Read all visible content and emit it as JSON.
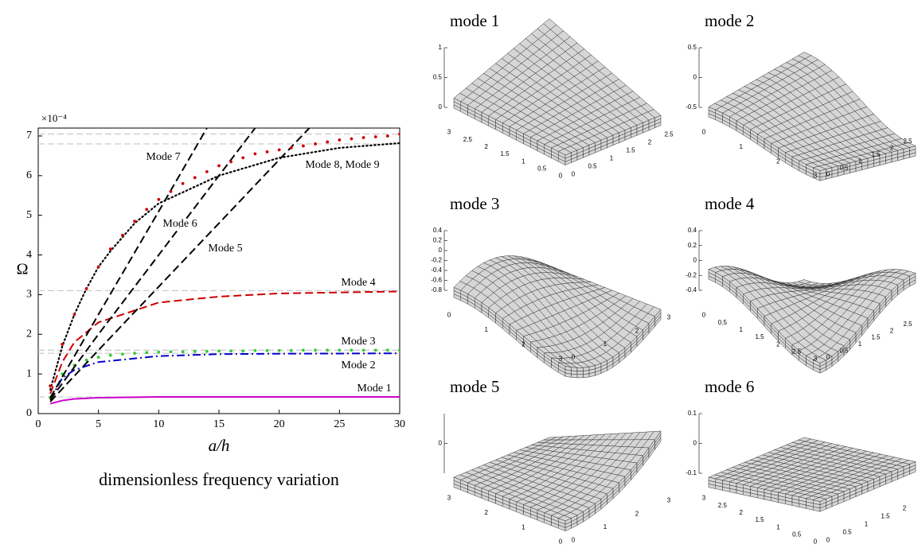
{
  "chart_data": {
    "type": "line",
    "caption": "dimensionless frequency variation",
    "xlabel": "a/h",
    "ylabel": "Ω",
    "scale_label": "×10⁻⁴",
    "xlim": [
      0,
      30
    ],
    "xticks": [
      0,
      5,
      10,
      15,
      20,
      25,
      30
    ],
    "ylim": [
      0,
      7.2
    ],
    "yticks": [
      0,
      1,
      2,
      3,
      4,
      5,
      6,
      7
    ],
    "ref_lines": [
      0.42,
      1.52,
      1.6,
      3.1,
      6.8,
      7.05
    ],
    "ref_color": "#c8c8c8",
    "series": [
      {
        "name": "Mode 1",
        "color": "#cc00cc",
        "style": "solid",
        "x": [
          1,
          2,
          3,
          5,
          10,
          30
        ],
        "values": [
          0.25,
          0.33,
          0.37,
          0.4,
          0.42,
          0.42
        ]
      },
      {
        "name": "Mode 2",
        "color": "#0000cc",
        "style": "dashdot",
        "x": [
          1,
          2,
          3,
          5,
          10,
          15,
          20,
          30
        ],
        "values": [
          0.35,
          0.9,
          1.1,
          1.3,
          1.45,
          1.5,
          1.51,
          1.52
        ]
      },
      {
        "name": "Mode 3",
        "color": "#33cc33",
        "style": "markers",
        "x": [
          1,
          2,
          3,
          4,
          5,
          6,
          7,
          8,
          9,
          10,
          11,
          12,
          13,
          14,
          15,
          16,
          17,
          18,
          19,
          20,
          21,
          22,
          23,
          24,
          25,
          26,
          27,
          28,
          29,
          30
        ],
        "values": [
          0.4,
          1.0,
          1.22,
          1.35,
          1.42,
          1.47,
          1.5,
          1.52,
          1.54,
          1.55,
          1.56,
          1.56,
          1.57,
          1.57,
          1.58,
          1.58,
          1.58,
          1.59,
          1.59,
          1.59,
          1.59,
          1.6,
          1.6,
          1.6,
          1.6,
          1.6,
          1.6,
          1.6,
          1.6,
          1.6
        ]
      },
      {
        "name": "Mode 4",
        "color": "#cc0000",
        "style": "dashed",
        "x": [
          1,
          2,
          3,
          5,
          10,
          15,
          20,
          30
        ],
        "values": [
          0.5,
          1.3,
          1.8,
          2.3,
          2.8,
          2.95,
          3.03,
          3.08
        ]
      },
      {
        "name": "Mode 5",
        "color": "#000000",
        "style": "dashed",
        "x": [
          1,
          5,
          10,
          15,
          20,
          22.5
        ],
        "values": [
          0.3,
          1.6,
          3.2,
          4.8,
          6.4,
          7.2
        ]
      },
      {
        "name": "Mode 6",
        "color": "#000000",
        "style": "dashed",
        "x": [
          1,
          5,
          10,
          15,
          18
        ],
        "values": [
          0.35,
          2.0,
          4.0,
          6.0,
          7.2
        ]
      },
      {
        "name": "Mode 7",
        "color": "#000000",
        "style": "dashed",
        "x": [
          1,
          5,
          10,
          14
        ],
        "values": [
          0.4,
          2.5,
          5.1,
          7.2
        ]
      },
      {
        "name": "Mode 8, Mode 9",
        "color": "#000000",
        "style": "dotted",
        "x": [
          1,
          2,
          3,
          4,
          5,
          6,
          8,
          10,
          15,
          20,
          25,
          30
        ],
        "values": [
          0.6,
          1.7,
          2.5,
          3.15,
          3.7,
          4.1,
          4.8,
          5.3,
          6.0,
          6.45,
          6.7,
          6.82
        ]
      },
      {
        "color": "#cc0000",
        "style": "markers",
        "x": [
          1,
          2,
          3,
          4,
          5,
          6,
          7,
          8,
          9,
          10,
          11,
          12,
          13,
          14,
          15,
          16,
          17,
          18,
          19,
          20,
          21,
          22,
          23,
          24,
          25,
          26,
          27,
          28,
          29,
          30
        ],
        "values": [
          0.7,
          1.75,
          2.5,
          3.15,
          3.7,
          4.15,
          4.5,
          4.85,
          5.15,
          5.4,
          5.6,
          5.8,
          5.95,
          6.1,
          6.25,
          6.35,
          6.45,
          6.55,
          6.6,
          6.65,
          6.7,
          6.75,
          6.8,
          6.85,
          6.9,
          6.93,
          6.96,
          6.98,
          7.0,
          7.05
        ]
      }
    ]
  },
  "mode_shapes": [
    {
      "title": "mode 1",
      "zticks": [
        0,
        0.5,
        1
      ],
      "aticks": [
        3,
        2.5,
        2,
        1.5,
        1,
        0.5,
        0
      ],
      "bticks": [
        0,
        0.5,
        1,
        1.5,
        2,
        2.5
      ]
    },
    {
      "title": "mode 2",
      "zticks": [
        -0.5,
        0,
        0.5
      ],
      "aticks": [
        0,
        1,
        2,
        3
      ],
      "bticks": [
        0,
        0.5,
        1,
        1.5,
        2,
        2.5,
        3
      ]
    },
    {
      "title": "mode 3",
      "zticks": [
        -0.8,
        -0.6,
        -0.4,
        -0.2,
        0,
        0.2,
        0.4
      ],
      "aticks": [
        0,
        1,
        2,
        3
      ],
      "bticks": [
        0,
        1,
        2,
        3
      ]
    },
    {
      "title": "mode 4",
      "zticks": [
        -0.4,
        -0.2,
        0,
        0.2,
        0.4
      ],
      "aticks": [
        0,
        0.5,
        1,
        1.5,
        2,
        2.5,
        3
      ],
      "bticks": [
        0,
        0.5,
        1,
        1.5,
        2,
        2.5,
        3
      ]
    },
    {
      "title": "mode 5",
      "zticks": [
        0
      ],
      "aticks": [
        3,
        2,
        1,
        0
      ],
      "bticks": [
        0,
        1,
        2,
        3
      ]
    },
    {
      "title": "mode 6",
      "zticks": [
        -0.1,
        0,
        0.1
      ],
      "aticks": [
        3,
        2.5,
        2,
        1.5,
        1,
        0.5,
        0
      ],
      "bticks": [
        0,
        0.5,
        1,
        1.5,
        2,
        2.5
      ]
    }
  ]
}
